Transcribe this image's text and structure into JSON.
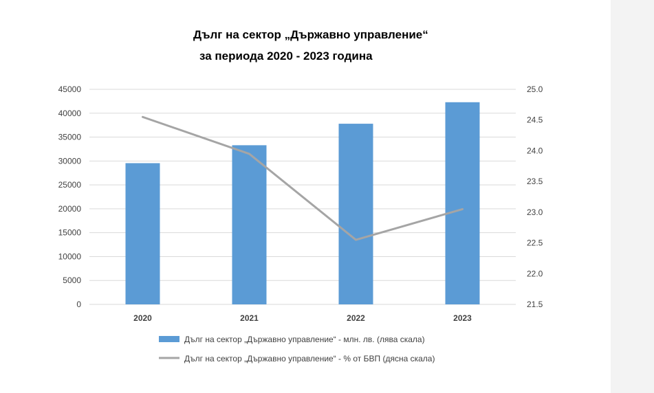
{
  "chart_data": {
    "type": "bar",
    "title_line1": "Дълг на сектор „Държавно управление“",
    "title_line2": "за периода 2020 - 2023 година",
    "categories": [
      "2020",
      "2021",
      "2022",
      "2023"
    ],
    "series": [
      {
        "name": "Дълг на сектор „Държавно управление“ - млн. лв. (лява скала)",
        "type": "bar",
        "axis": "left",
        "values": [
          29550,
          33300,
          37800,
          42300
        ]
      },
      {
        "name": "Дълг на сектор „Държавно управление“ - % от БВП (дясна скала)",
        "type": "line",
        "axis": "right",
        "values": [
          24.55,
          23.95,
          22.55,
          23.05
        ]
      }
    ],
    "left_axis": {
      "min": 0,
      "max": 45000,
      "ticks": [
        "0",
        "5000",
        "10000",
        "15000",
        "20000",
        "25000",
        "30000",
        "35000",
        "40000",
        "45000"
      ]
    },
    "right_axis": {
      "min": 21.5,
      "max": 25.0,
      "ticks": [
        "21.5",
        "22.0",
        "22.5",
        "23.0",
        "23.5",
        "24.0",
        "24.5",
        "25.0"
      ]
    },
    "grid": true,
    "legend_position": "bottom",
    "colors": {
      "bar": "#5b9bd5",
      "line": "#a5a5a5",
      "grid": "#d9d9d9",
      "text": "#404040"
    }
  }
}
